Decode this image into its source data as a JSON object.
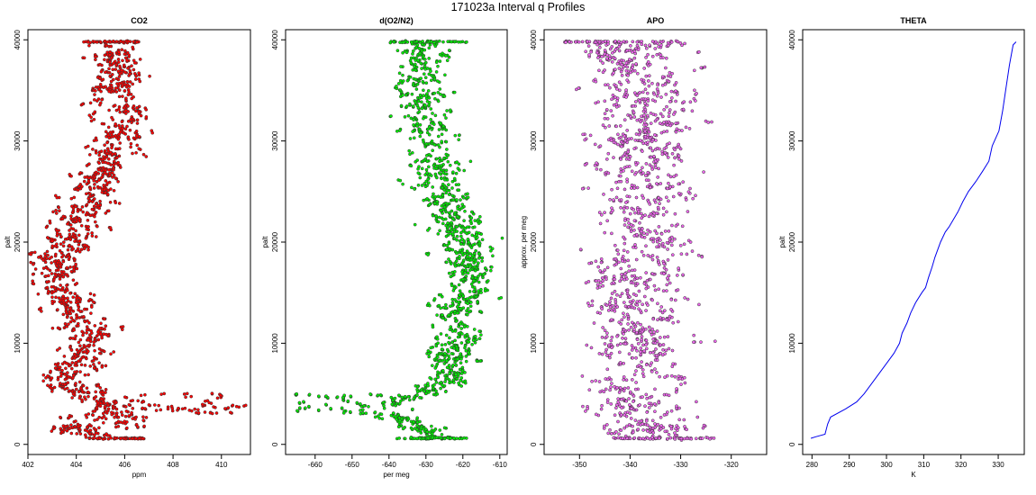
{
  "title": "171023a   Interval q Profiles",
  "chart_data": [
    {
      "type": "scatter",
      "title": "CO2",
      "xlabel": "ppm",
      "ylabel": "palt",
      "xlim": [
        402,
        411.2
      ],
      "ylim": [
        -1000,
        41000
      ],
      "xticks": [
        402,
        404,
        406,
        408,
        410
      ],
      "yticks": [
        0,
        10000,
        20000,
        30000,
        40000
      ],
      "color": "#ff0000",
      "profile": [
        [
          600,
          405.3
        ],
        [
          1500,
          404.0
        ],
        [
          2500,
          405.0
        ],
        [
          3500,
          405.5
        ],
        [
          5000,
          404.2
        ],
        [
          6500,
          403.5
        ],
        [
          8000,
          404.3
        ],
        [
          9500,
          404.3
        ],
        [
          11000,
          404.6
        ],
        [
          12500,
          404.0
        ],
        [
          14000,
          403.8
        ],
        [
          15500,
          403.2
        ],
        [
          16500,
          403.0
        ],
        [
          18000,
          403.4
        ],
        [
          19500,
          403.6
        ],
        [
          21000,
          403.7
        ],
        [
          22500,
          404.0
        ],
        [
          24000,
          404.5
        ],
        [
          25500,
          404.9
        ],
        [
          27000,
          405.1
        ],
        [
          28500,
          405.4
        ],
        [
          30000,
          405.6
        ],
        [
          31500,
          405.8
        ],
        [
          32500,
          405.9
        ],
        [
          34000,
          405.4
        ],
        [
          35500,
          405.6
        ],
        [
          37000,
          405.8
        ],
        [
          38500,
          405.6
        ],
        [
          39800,
          405.3
        ]
      ],
      "spread": 1.0,
      "extra_clusters": [
        {
          "y": [
            3000,
            5000
          ],
          "x": [
            406,
            411
          ],
          "n": 40
        },
        {
          "y": [
            1200,
            2800
          ],
          "x": [
            403,
            407
          ],
          "n": 30
        }
      ],
      "flat_lines": [
        {
          "y": 39800,
          "x": [
            404.3,
            406.6
          ]
        },
        {
          "y": 600,
          "x": [
            404.5,
            406.8
          ]
        }
      ]
    },
    {
      "type": "scatter",
      "title": "d(O2/N2)",
      "xlabel": "per meg",
      "ylabel": "palt",
      "xlim": [
        -668,
        -608
      ],
      "ylim": [
        -1000,
        41000
      ],
      "xticks": [
        -660,
        -650,
        -640,
        -630,
        -620,
        -610
      ],
      "yticks": [
        0,
        10000,
        20000,
        30000,
        40000
      ],
      "color": "#00ee00",
      "profile": [
        [
          600,
          -626
        ],
        [
          2000,
          -632
        ],
        [
          3500,
          -648
        ],
        [
          5000,
          -630
        ],
        [
          6500,
          -624
        ],
        [
          8000,
          -622
        ],
        [
          9500,
          -624
        ],
        [
          11000,
          -620
        ],
        [
          12500,
          -623
        ],
        [
          14000,
          -620
        ],
        [
          15500,
          -619
        ],
        [
          17000,
          -618
        ],
        [
          18500,
          -619
        ],
        [
          20000,
          -620
        ],
        [
          21500,
          -622
        ],
        [
          23000,
          -623
        ],
        [
          24500,
          -625
        ],
        [
          26000,
          -626
        ],
        [
          27500,
          -627
        ],
        [
          29000,
          -628
        ],
        [
          30500,
          -629
        ],
        [
          32000,
          -630
        ],
        [
          33500,
          -631
        ],
        [
          35000,
          -631
        ],
        [
          36500,
          -630
        ],
        [
          38000,
          -631
        ],
        [
          39800,
          -630
        ]
      ],
      "spread": 6.0,
      "extra_clusters": [
        {
          "y": [
            3000,
            5000
          ],
          "x": [
            -666,
            -632
          ],
          "n": 40
        }
      ],
      "flat_lines": [
        {
          "y": 39800,
          "x": [
            -640,
            -619
          ]
        },
        {
          "y": 600,
          "x": [
            -638,
            -619
          ]
        }
      ]
    },
    {
      "type": "scatter",
      "title": "APO",
      "xlabel": "",
      "ylabel": "approx. per meg",
      "xlim": [
        -357,
        -313
      ],
      "ylim": [
        -1000,
        41000
      ],
      "xticks": [
        -350,
        -340,
        -330,
        -320
      ],
      "yticks": [
        0,
        10000,
        20000,
        30000,
        40000
      ],
      "color": "#ee66ee",
      "profile": [
        [
          600,
          -336
        ],
        [
          2500,
          -338
        ],
        [
          5000,
          -339
        ],
        [
          7500,
          -338
        ],
        [
          10000,
          -339
        ],
        [
          12500,
          -339
        ],
        [
          15000,
          -340
        ],
        [
          17500,
          -339
        ],
        [
          20000,
          -338
        ],
        [
          22500,
          -338
        ],
        [
          25000,
          -337
        ],
        [
          27500,
          -337
        ],
        [
          30000,
          -337
        ],
        [
          32500,
          -337
        ],
        [
          35000,
          -338
        ],
        [
          37500,
          -339
        ],
        [
          39800,
          -340
        ]
      ],
      "spread": 9.0,
      "extra_clusters": [],
      "flat_lines": [
        {
          "y": 39800,
          "x": [
            -353,
            -330
          ]
        },
        {
          "y": 600,
          "x": [
            -344,
            -323
          ]
        }
      ]
    },
    {
      "type": "line",
      "title": "THETA",
      "xlabel": "K",
      "ylabel": "palt",
      "xlim": [
        277.5,
        337
      ],
      "ylim": [
        -1000,
        41000
      ],
      "xticks": [
        280,
        290,
        300,
        310,
        320,
        330
      ],
      "yticks": [
        0,
        10000,
        20000,
        30000,
        40000
      ],
      "color": "#0000ee",
      "series": [
        {
          "x": [
            279.7,
            281,
            283.5,
            284.2,
            285,
            289,
            292,
            294,
            296,
            298,
            300,
            302,
            303.5,
            304.2,
            305.5,
            306.5,
            307.8,
            309.5,
            310.5,
            311.3,
            312.2,
            313,
            314.5,
            315.8,
            316.8,
            317.6,
            319.2,
            320.5,
            322,
            324,
            325.8,
            327.5,
            328.4,
            330.2,
            331.2,
            332,
            333,
            334,
            334.8
          ],
          "y": [
            600,
            750,
            1000,
            2000,
            2700,
            3500,
            4200,
            5000,
            6000,
            7000,
            8000,
            9000,
            10000,
            11000,
            12000,
            13000,
            14000,
            15000,
            15500,
            16500,
            17500,
            18500,
            20000,
            21000,
            21500,
            22000,
            23000,
            24000,
            25000,
            26000,
            27000,
            28000,
            29500,
            31000,
            33000,
            35000,
            37500,
            39500,
            39800
          ]
        }
      ]
    }
  ]
}
